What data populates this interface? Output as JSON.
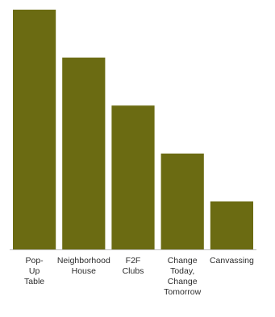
{
  "colors": {
    "bar": "#6b6b12",
    "baseline": "#bdbdbd",
    "background": "#ffffff"
  },
  "chart_data": {
    "type": "bar",
    "categories": [
      "Pop-\nUp\nTable",
      "Neighborhood\nHouse",
      "F2F\nClubs",
      "Change\nToday,\nChange\nTomorrow",
      "Canvassing"
    ],
    "values": [
      100,
      80,
      60,
      40,
      20
    ],
    "ylim": [
      0,
      100
    ],
    "grid": false,
    "legend": "none"
  }
}
